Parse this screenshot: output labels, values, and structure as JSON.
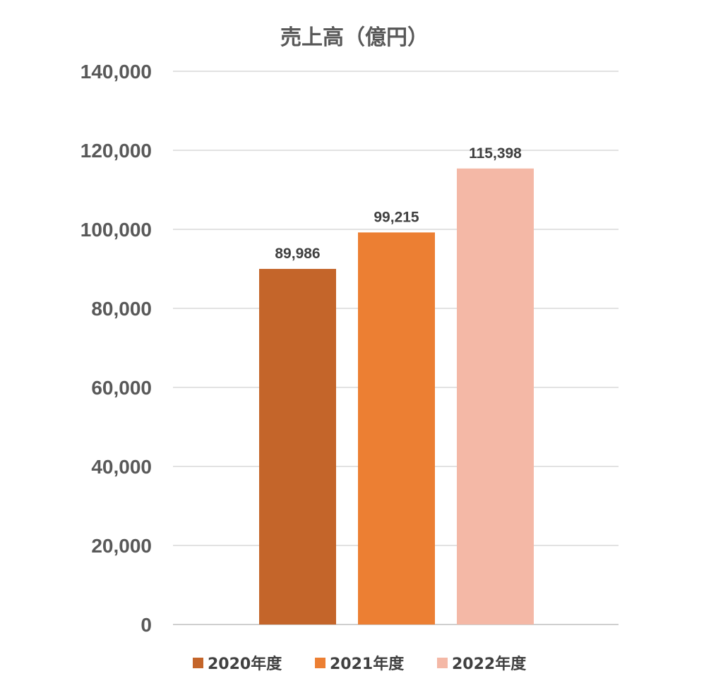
{
  "chart_data": {
    "type": "bar",
    "title": "売上高（億円）",
    "xlabel": "",
    "ylabel": "",
    "ylim": [
      0,
      140000
    ],
    "y_ticks": [
      0,
      20000,
      40000,
      60000,
      80000,
      100000,
      120000,
      140000
    ],
    "y_tick_labels": [
      "0",
      "20,000",
      "40,000",
      "60,000",
      "80,000",
      "100,000",
      "120,000",
      "140,000"
    ],
    "grid": true,
    "legend_position": "bottom",
    "series": [
      {
        "name": "2020年度",
        "values": [
          89986
        ],
        "label": "89,986",
        "color": "#c4652a"
      },
      {
        "name": "2021年度",
        "values": [
          99215
        ],
        "label": "99,215",
        "color": "#ec7f33"
      },
      {
        "name": "2022年度",
        "values": [
          115398
        ],
        "label": "115,398",
        "color": "#f4b8a6"
      }
    ]
  }
}
